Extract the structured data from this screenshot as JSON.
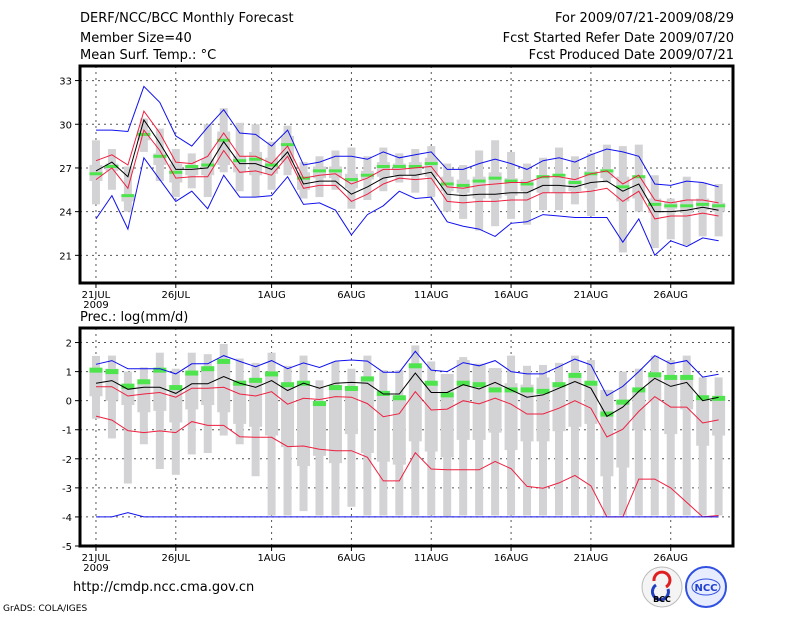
{
  "header": {
    "title": "DERF/NCC/BCC Monthly Forecast",
    "member_size": "Member Size=40",
    "variable": "Mean Surf. Temp.: °C",
    "period": "For 2009/07/21-2009/08/29",
    "started": "Fcst Started Refer Date 2009/07/20",
    "produced": "Fcst Produced Date 2009/07/21"
  },
  "footer": {
    "url": "http://cmdp.ncc.cma.gov.cn",
    "credit": "GrADS: COLA/IGES",
    "logo_bcc": "BCC",
    "logo_ncc": "NCC"
  },
  "colors": {
    "box": "#d3d3d6",
    "green": "#4ee44e",
    "black": "#000000",
    "red": "#ee2040",
    "blue": "#1010ee"
  },
  "chart_data": [
    {
      "type": "line",
      "title": "Mean Surf. Temp.: °C",
      "ylim": [
        19.1,
        34.0
      ],
      "yticks": [
        21,
        24,
        27,
        30,
        33
      ],
      "xticks": [
        {
          "day": 0,
          "label": "21JUL",
          "sub": "2009"
        },
        {
          "day": 5,
          "label": "26JUL"
        },
        {
          "day": 11,
          "label": "1AUG"
        },
        {
          "day": 16,
          "label": "6AUG"
        },
        {
          "day": 21,
          "label": "11AUG"
        },
        {
          "day": 26,
          "label": "16AUG"
        },
        {
          "day": 31,
          "label": "21AUG"
        },
        {
          "day": 36,
          "label": "26AUG"
        }
      ],
      "grid": true,
      "range_lo": [
        24.5,
        25.5,
        24.0,
        28.1,
        26.1,
        25.0,
        25.6,
        25.0,
        26.7,
        25.4,
        25.0,
        25.5,
        26.5,
        24.9,
        25.0,
        25.5,
        24.2,
        24.8,
        25.4,
        26.0,
        25.3,
        25.0,
        24.0,
        23.5,
        22.7,
        23.0,
        23.5,
        23.1,
        24.1,
        24.1,
        24.5,
        23.7,
        26.0,
        21.2,
        24.0,
        21.5,
        22.1,
        21.7,
        22.3,
        22.3
      ],
      "range_hi": [
        28.9,
        28.3,
        27.1,
        30.4,
        29.7,
        28.3,
        28.0,
        30.0,
        31.1,
        30.1,
        30.0,
        28.8,
        29.9,
        27.4,
        27.8,
        28.2,
        28.4,
        27.8,
        28.4,
        28.0,
        28.3,
        28.5,
        27.3,
        27.2,
        28.2,
        28.9,
        28.1,
        27.3,
        27.7,
        28.4,
        27.8,
        28.0,
        28.6,
        28.5,
        28.6,
        26.5,
        24.9,
        26.4,
        26.0,
        25.9
      ],
      "box_lo": [
        26.1,
        26.8,
        24.7,
        28.9,
        27.2,
        26.0,
        26.5,
        26.5,
        27.2,
        26.7,
        26.5,
        26.6,
        27.4,
        25.5,
        26.3,
        26.3,
        25.6,
        26.2,
        26.4,
        26.5,
        26.5,
        26.4,
        25.4,
        25.3,
        24.9,
        24.9,
        25.1,
        25.4,
        25.3,
        25.3,
        25.4,
        25.6,
        26.3,
        24.7,
        24.9,
        23.9,
        24.2,
        23.9,
        24.1,
        24.0
      ],
      "box_hi": [
        27.2,
        27.3,
        25.2,
        29.6,
        28.0,
        27.3,
        27.2,
        27.6,
        29.5,
        27.8,
        28.1,
        27.7,
        29.2,
        26.7,
        27.1,
        27.1,
        26.6,
        26.8,
        27.4,
        27.3,
        27.4,
        27.7,
        26.4,
        26.2,
        26.4,
        26.7,
        26.3,
        26.2,
        26.4,
        26.3,
        26.2,
        26.8,
        26.9,
        26.4,
        26.4,
        24.9,
        24.7,
        24.8,
        24.9,
        24.6
      ],
      "series": [
        {
          "name": "observed",
          "color": "green",
          "values": [
            26.6,
            27.1,
            25.1,
            29.3,
            27.8,
            26.7,
            27.1,
            27.2,
            28.9,
            27.5,
            27.6,
            27.2,
            28.6,
            26.3,
            26.8,
            26.8,
            26.2,
            26.5,
            27.1,
            27.1,
            27.1,
            27.3,
            25.9,
            25.8,
            26.1,
            26.3,
            26.1,
            25.9,
            26.4,
            26.5,
            26.0,
            26.6,
            26.8,
            25.7,
            26.4,
            24.5,
            24.4,
            24.4,
            24.5,
            24.4
          ]
        },
        {
          "name": "max",
          "color": "blue",
          "values": [
            29.6,
            29.6,
            29.5,
            32.6,
            31.5,
            29.2,
            28.5,
            29.8,
            31.0,
            29.4,
            29.3,
            28.5,
            29.6,
            27.2,
            27.4,
            27.8,
            27.8,
            27.6,
            28.1,
            27.7,
            27.9,
            28.1,
            26.9,
            26.9,
            27.3,
            27.6,
            27.3,
            26.9,
            27.5,
            27.7,
            27.4,
            27.9,
            28.3,
            28.1,
            27.8,
            25.9,
            25.8,
            26.1,
            26.0,
            25.7
          ]
        },
        {
          "name": "upper",
          "color": "red",
          "values": [
            27.5,
            27.9,
            27.2,
            30.9,
            29.4,
            27.4,
            27.3,
            27.8,
            29.4,
            27.8,
            27.8,
            27.3,
            28.5,
            26.3,
            26.5,
            26.6,
            25.9,
            26.3,
            26.9,
            26.9,
            27.0,
            27.1,
            25.7,
            25.6,
            25.8,
            25.9,
            26.0,
            26.0,
            26.4,
            26.4,
            26.2,
            26.6,
            26.8,
            25.9,
            26.5,
            24.8,
            24.6,
            24.8,
            24.8,
            24.6
          ]
        },
        {
          "name": "mean",
          "color": "black",
          "values": [
            26.8,
            27.4,
            26.4,
            30.3,
            28.7,
            26.9,
            26.9,
            27.0,
            28.8,
            27.3,
            27.3,
            26.9,
            28.1,
            25.9,
            26.1,
            26.1,
            25.2,
            25.7,
            26.3,
            26.5,
            26.5,
            26.7,
            25.2,
            25.1,
            25.2,
            25.2,
            25.3,
            25.3,
            25.8,
            25.8,
            25.7,
            26.0,
            26.1,
            25.4,
            25.9,
            24.0,
            24.0,
            24.1,
            24.3,
            24.1
          ]
        },
        {
          "name": "lower",
          "color": "red",
          "values": [
            26.2,
            27.0,
            25.6,
            29.6,
            28.2,
            26.3,
            26.4,
            26.4,
            28.2,
            26.7,
            26.8,
            26.5,
            27.8,
            25.6,
            25.8,
            25.8,
            24.7,
            25.2,
            25.9,
            26.3,
            26.2,
            26.3,
            24.7,
            24.6,
            24.7,
            24.7,
            24.8,
            24.8,
            25.3,
            25.3,
            25.3,
            25.4,
            25.6,
            24.7,
            25.4,
            23.5,
            23.7,
            23.7,
            23.9,
            23.7
          ]
        },
        {
          "name": "min",
          "color": "blue",
          "values": [
            23.5,
            25.1,
            22.8,
            27.7,
            26.2,
            24.7,
            25.4,
            24.2,
            26.5,
            25.0,
            25.0,
            25.1,
            26.4,
            24.5,
            24.6,
            24.1,
            22.4,
            23.8,
            24.4,
            25.4,
            24.9,
            25.0,
            23.3,
            23.0,
            22.8,
            22.3,
            23.2,
            23.3,
            23.8,
            23.7,
            23.6,
            23.6,
            23.6,
            21.9,
            23.5,
            21.0,
            22.0,
            21.6,
            22.2,
            22.0
          ]
        }
      ]
    },
    {
      "type": "line",
      "title": "Prec.: log(mm/d)",
      "ylim": [
        -5,
        2.5
      ],
      "yticks": [
        -5,
        -4,
        -3,
        -2,
        -1,
        0,
        1,
        2
      ],
      "xticks": [
        {
          "day": 0,
          "label": "21JUL",
          "sub": "2009"
        },
        {
          "day": 5,
          "label": "26JUL"
        },
        {
          "day": 11,
          "label": "1AUG"
        },
        {
          "day": 16,
          "label": "6AUG"
        },
        {
          "day": 21,
          "label": "11AUG"
        },
        {
          "day": 26,
          "label": "16AUG"
        },
        {
          "day": 31,
          "label": "21AUG"
        },
        {
          "day": 36,
          "label": "26AUG"
        }
      ],
      "grid": true,
      "range_lo": [
        -0.62,
        -1.3,
        -2.85,
        -1.5,
        -2.35,
        -2.55,
        -1.85,
        -1.8,
        -1.2,
        -1.5,
        -2.6,
        -3.95,
        -3.95,
        -3.8,
        -3.95,
        -3.95,
        -3.65,
        -3.95,
        -3.95,
        -3.95,
        -3.95,
        -3.95,
        -3.98,
        -3.95,
        -3.95,
        -3.95,
        -3.95,
        -3.95,
        -3.95,
        -3.95,
        -3.95,
        -3.95,
        -3.95,
        -3.95,
        -3.95,
        -3.95,
        -3.95,
        -3.95,
        -3.95,
        -3.95
      ],
      "range_hi": [
        1.54,
        1.55,
        1.0,
        1.15,
        1.65,
        1.1,
        1.65,
        1.6,
        1.95,
        1.45,
        1.3,
        1.65,
        1.2,
        1.55,
        0.7,
        1.35,
        1.1,
        1.55,
        1.05,
        1.05,
        1.9,
        1.35,
        0.92,
        1.5,
        1.27,
        1.12,
        1.55,
        1.2,
        1.23,
        1.3,
        1.55,
        1.4,
        0.37,
        1.0,
        1.1,
        1.55,
        1.4,
        1.55,
        0.8,
        0.8
      ],
      "box_lo": [
        0.15,
        0.0,
        -0.15,
        -0.4,
        -0.35,
        -0.75,
        -0.3,
        -0.15,
        -0.4,
        -0.8,
        -0.9,
        -1.2,
        -1.6,
        -2.25,
        -1.9,
        -2.15,
        -1.15,
        -1.8,
        -2.1,
        -2.2,
        -1.4,
        -1.75,
        -1.95,
        -1.35,
        -1.35,
        -1.1,
        -1.7,
        -1.4,
        -1.4,
        -1.05,
        -0.9,
        -0.8,
        -2.6,
        -2.3,
        -1.0,
        0.0,
        -1.15,
        -0.3,
        -1.55,
        -1.2
      ],
      "box_hi": [
        1.1,
        1.1,
        0.55,
        0.65,
        1.1,
        0.5,
        1.0,
        1.15,
        1.35,
        0.7,
        0.7,
        0.95,
        0.55,
        0.6,
        -0.05,
        0.45,
        0.45,
        0.8,
        0.3,
        0.1,
        1.2,
        0.6,
        0.92,
        1.4,
        1.27,
        1.12,
        0.6,
        0.55,
        0.8,
        0.55,
        0.87,
        0.55,
        0.37,
        0.0,
        0.4,
        0.9,
        0.8,
        0.8,
        0.1,
        0.1
      ],
      "series": [
        {
          "name": "observed",
          "color": "green",
          "values": [
            1.05,
            1.0,
            0.5,
            0.65,
            1.05,
            0.45,
            0.95,
            1.1,
            1.35,
            0.6,
            0.7,
            0.92,
            0.55,
            0.6,
            -0.1,
            0.45,
            0.42,
            0.75,
            0.25,
            0.1,
            1.2,
            0.6,
            0.2,
            0.6,
            0.55,
            0.37,
            0.37,
            0.37,
            0.32,
            0.55,
            0.87,
            0.6,
            -0.46,
            -0.05,
            0.37,
            0.89,
            0.8,
            0.8,
            0.1,
            0.08
          ]
        },
        {
          "name": "max",
          "color": "blue",
          "values": [
            1.25,
            1.38,
            1.1,
            1.1,
            1.1,
            0.92,
            1.27,
            1.27,
            1.55,
            1.35,
            1.17,
            1.38,
            1.1,
            1.3,
            1.14,
            1.36,
            1.4,
            1.36,
            0.98,
            0.98,
            1.7,
            1.05,
            1.0,
            1.31,
            1.2,
            1.38,
            1.0,
            0.92,
            0.92,
            1.17,
            1.43,
            1.23,
            0.17,
            0.49,
            1.0,
            1.55,
            1.27,
            1.38,
            0.81,
            0.91
          ]
        },
        {
          "name": "mean",
          "color": "black",
          "values": [
            0.6,
            0.69,
            0.39,
            0.46,
            0.46,
            0.25,
            0.58,
            0.58,
            0.83,
            0.6,
            0.46,
            0.69,
            0.35,
            0.6,
            0.43,
            0.6,
            0.63,
            0.6,
            0.23,
            0.23,
            0.95,
            0.28,
            0.28,
            0.55,
            0.4,
            0.63,
            0.37,
            0.12,
            0.2,
            0.43,
            0.66,
            0.43,
            -0.54,
            -0.22,
            0.32,
            0.77,
            0.49,
            0.63,
            0.0,
            0.12
          ]
        },
        {
          "name": "upper",
          "color": "red",
          "values": [
            0.48,
            0.48,
            0.16,
            0.23,
            0.28,
            0.12,
            0.43,
            0.43,
            0.46,
            0.23,
            0.16,
            0.31,
            -0.12,
            0.08,
            0.04,
            0.14,
            0.12,
            -0.1,
            -0.55,
            -0.45,
            0.31,
            -0.32,
            -0.29,
            0.0,
            -0.11,
            0.09,
            -0.12,
            -0.46,
            -0.46,
            -0.26,
            0.0,
            -0.26,
            -1.25,
            -0.98,
            -0.37,
            0.14,
            -0.22,
            -0.22,
            -0.77,
            -0.66
          ]
        },
        {
          "name": "lower",
          "color": "red",
          "values": [
            -0.53,
            -0.67,
            -1.03,
            -1.1,
            -1.04,
            -1.1,
            -0.72,
            -0.85,
            -0.85,
            -1.24,
            -1.26,
            -1.26,
            -1.58,
            -1.56,
            -1.67,
            -1.72,
            -1.72,
            -1.95,
            -2.76,
            -2.76,
            -1.79,
            -2.35,
            -2.38,
            -2.38,
            -2.38,
            -2.09,
            -2.34,
            -2.95,
            -3.01,
            -2.83,
            -2.57,
            -2.93,
            -4.0,
            -4.0,
            -2.7,
            -2.7,
            -3.0,
            -3.5,
            -4.0,
            -3.95
          ]
        },
        {
          "name": "min",
          "color": "blue",
          "values": [
            -4,
            -4,
            -3.85,
            -4,
            -4,
            -4,
            -4,
            -4,
            -4,
            -4,
            -4,
            -4,
            -4,
            -4,
            -4,
            -4,
            -4,
            -4,
            -4,
            -4,
            -4,
            -4,
            -4,
            -4,
            -4,
            -4,
            -4,
            -4,
            -4,
            -4,
            -4,
            -4,
            -4,
            -4,
            -4,
            -4,
            -4,
            -4,
            -4,
            -4
          ]
        }
      ]
    }
  ]
}
